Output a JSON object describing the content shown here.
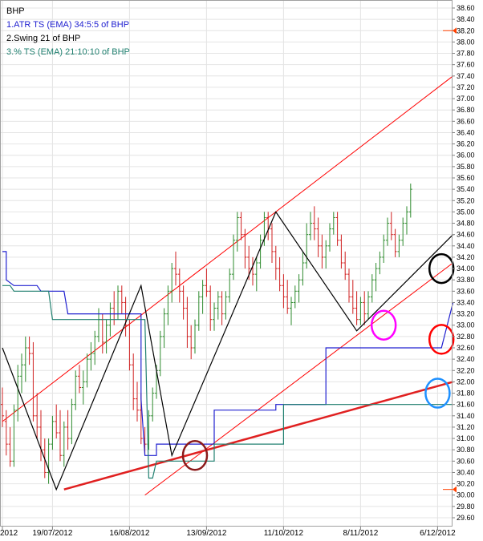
{
  "chart_data": {
    "type": "line",
    "title": "BHP",
    "legend": [
      {
        "label": "1.ATR TS (EMA) 34:5:5 of BHP",
        "color": "#2020d0"
      },
      {
        "label": "2.Swing 21  of BHP",
        "color": "#000000"
      },
      {
        "label": "3.% TS (EMA) 21:10:10 of BHP",
        "color": "#208070"
      }
    ],
    "ylim": [
      29.6,
      38.6
    ],
    "y_ticks": [
      "29.60",
      "29.80",
      "30.00",
      "30.20",
      "30.40",
      "30.60",
      "30.80",
      "31.00",
      "31.20",
      "31.40",
      "31.60",
      "31.80",
      "32.00",
      "32.20",
      "32.40",
      "32.60",
      "32.80",
      "33.00",
      "33.20",
      "33.40",
      "33.60",
      "33.80",
      "34.00",
      "34.20",
      "34.40",
      "34.60",
      "34.80",
      "35.00",
      "35.20",
      "35.40",
      "35.60",
      "35.80",
      "36.00",
      "36.20",
      "36.40",
      "36.60",
      "36.80",
      "37.00",
      "37.20",
      "37.40",
      "37.60",
      "37.80",
      "38.00",
      "38.20",
      "38.40",
      "38.60"
    ],
    "x_ticks": [
      {
        "label": "2012",
        "i": 0
      },
      {
        "label": "19/07/2012",
        "i": 13
      },
      {
        "label": "16/08/2012",
        "i": 33
      },
      {
        "label": "13/09/2012",
        "i": 53
      },
      {
        "label": "11/10/2012",
        "i": 73
      },
      {
        "label": "8/11/2012",
        "i": 93
      },
      {
        "label": "6/12/2012",
        "i": 113
      }
    ],
    "grid": true,
    "price_markers": [
      {
        "price": 38.2,
        "color": "#ff4000"
      },
      {
        "price": 30.1,
        "color": "#ff4000"
      }
    ],
    "candles": [
      [
        31.6,
        31.9,
        31.2,
        31.4
      ],
      [
        31.3,
        31.5,
        30.7,
        30.9
      ],
      [
        30.9,
        31.2,
        30.5,
        30.6
      ],
      [
        30.6,
        31.6,
        30.5,
        31.5
      ],
      [
        31.5,
        32.3,
        31.3,
        32.1
      ],
      [
        32.1,
        32.5,
        31.8,
        32.3
      ],
      [
        32.3,
        32.8,
        32.0,
        32.6
      ],
      [
        32.6,
        32.8,
        32.3,
        32.5
      ],
      [
        32.5,
        32.7,
        31.3,
        31.4
      ],
      [
        31.4,
        31.8,
        31.0,
        31.2
      ],
      [
        31.2,
        31.5,
        30.6,
        30.8
      ],
      [
        30.8,
        31.0,
        30.3,
        30.4
      ],
      [
        30.4,
        31.0,
        30.2,
        30.9
      ],
      [
        30.9,
        31.4,
        30.8,
        31.3
      ],
      [
        31.3,
        31.6,
        31.0,
        31.1
      ],
      [
        31.1,
        31.5,
        30.6,
        30.7
      ],
      [
        30.7,
        31.3,
        30.5,
        31.2
      ],
      [
        31.2,
        31.5,
        30.8,
        31.0
      ],
      [
        31.0,
        31.7,
        30.9,
        31.6
      ],
      [
        31.6,
        32.2,
        31.5,
        32.1
      ],
      [
        32.1,
        32.3,
        31.8,
        31.9
      ],
      [
        31.9,
        32.2,
        31.6,
        32.0
      ],
      [
        32.0,
        32.5,
        31.9,
        32.4
      ],
      [
        32.4,
        32.7,
        32.2,
        32.5
      ],
      [
        32.5,
        32.9,
        32.3,
        32.8
      ],
      [
        32.8,
        33.3,
        32.7,
        33.1
      ],
      [
        33.1,
        33.2,
        32.5,
        32.7
      ],
      [
        32.7,
        33.1,
        32.5,
        33.0
      ],
      [
        33.0,
        33.4,
        32.8,
        33.3
      ],
      [
        33.3,
        33.6,
        33.0,
        33.2
      ],
      [
        33.2,
        33.7,
        33.1,
        33.6
      ],
      [
        33.6,
        33.7,
        33.2,
        33.4
      ],
      [
        33.4,
        33.5,
        32.8,
        33.0
      ],
      [
        33.0,
        33.1,
        32.2,
        32.3
      ],
      [
        32.3,
        32.5,
        31.5,
        31.7
      ],
      [
        31.7,
        32.0,
        31.3,
        31.5
      ],
      [
        31.5,
        31.8,
        30.9,
        31.0
      ],
      [
        31.0,
        31.2,
        30.7,
        30.9
      ],
      [
        30.9,
        31.5,
        30.8,
        31.4
      ],
      [
        31.4,
        31.9,
        31.3,
        31.8
      ],
      [
        31.8,
        32.3,
        31.7,
        32.2
      ],
      [
        32.2,
        32.9,
        32.1,
        32.8
      ],
      [
        32.8,
        33.3,
        32.6,
        33.2
      ],
      [
        33.2,
        33.7,
        33.0,
        33.6
      ],
      [
        33.6,
        34.1,
        33.4,
        34.0
      ],
      [
        34.0,
        34.3,
        33.7,
        33.9
      ],
      [
        33.9,
        34.0,
        33.4,
        33.6
      ],
      [
        33.6,
        33.7,
        33.1,
        33.3
      ],
      [
        33.3,
        33.5,
        32.6,
        32.8
      ],
      [
        32.8,
        33.0,
        32.4,
        32.6
      ],
      [
        32.6,
        33.1,
        32.5,
        33.0
      ],
      [
        33.0,
        33.6,
        32.9,
        33.5
      ],
      [
        33.5,
        33.8,
        33.2,
        33.7
      ],
      [
        33.7,
        34.0,
        33.5,
        33.6
      ],
      [
        33.6,
        33.7,
        32.9,
        33.1
      ],
      [
        33.1,
        33.4,
        32.9,
        33.3
      ],
      [
        33.3,
        33.6,
        33.1,
        33.5
      ],
      [
        33.5,
        33.6,
        33.0,
        33.2
      ],
      [
        33.2,
        33.6,
        33.1,
        33.5
      ],
      [
        33.5,
        34.0,
        33.4,
        33.9
      ],
      [
        33.9,
        34.6,
        33.8,
        34.5
      ],
      [
        34.5,
        35.0,
        34.3,
        34.9
      ],
      [
        34.9,
        35.0,
        34.5,
        34.6
      ],
      [
        34.6,
        34.7,
        34.0,
        34.2
      ],
      [
        34.2,
        34.4,
        33.8,
        34.0
      ],
      [
        34.0,
        34.2,
        33.7,
        33.9
      ],
      [
        33.9,
        34.2,
        33.6,
        34.1
      ],
      [
        34.1,
        34.6,
        34.0,
        34.5
      ],
      [
        34.5,
        35.0,
        34.4,
        34.9
      ],
      [
        34.9,
        35.0,
        34.5,
        34.7
      ],
      [
        34.7,
        34.8,
        34.1,
        34.3
      ],
      [
        34.3,
        34.4,
        33.8,
        34.0
      ],
      [
        34.0,
        34.2,
        33.6,
        33.7
      ],
      [
        33.7,
        33.9,
        33.3,
        33.5
      ],
      [
        33.5,
        33.8,
        33.2,
        33.3
      ],
      [
        33.3,
        33.5,
        33.0,
        33.4
      ],
      [
        33.4,
        33.7,
        33.3,
        33.6
      ],
      [
        33.6,
        33.9,
        33.4,
        33.8
      ],
      [
        33.8,
        34.3,
        33.7,
        34.1
      ],
      [
        34.1,
        34.8,
        34.0,
        34.6
      ],
      [
        34.6,
        35.0,
        34.5,
        34.8
      ],
      [
        34.8,
        35.1,
        34.5,
        34.7
      ],
      [
        34.7,
        34.9,
        34.2,
        34.4
      ],
      [
        34.4,
        34.6,
        34.0,
        34.2
      ],
      [
        34.2,
        34.5,
        34.0,
        34.4
      ],
      [
        34.4,
        34.8,
        34.3,
        34.7
      ],
      [
        34.7,
        35.0,
        34.6,
        34.9
      ],
      [
        34.9,
        35.0,
        34.4,
        34.5
      ],
      [
        34.5,
        34.6,
        34.0,
        34.1
      ],
      [
        34.1,
        34.3,
        33.8,
        33.9
      ],
      [
        33.9,
        34.0,
        33.4,
        33.5
      ],
      [
        33.5,
        33.8,
        33.2,
        33.3
      ],
      [
        33.3,
        33.6,
        33.0,
        33.1
      ],
      [
        33.1,
        33.5,
        33.0,
        33.4
      ],
      [
        33.4,
        33.6,
        33.0,
        33.2
      ],
      [
        33.2,
        33.6,
        33.1,
        33.5
      ],
      [
        33.5,
        33.9,
        33.4,
        33.8
      ],
      [
        33.8,
        34.1,
        33.6,
        34.0
      ],
      [
        34.0,
        34.3,
        33.9,
        34.2
      ],
      [
        34.2,
        34.6,
        34.1,
        34.5
      ],
      [
        34.5,
        34.9,
        34.4,
        34.8
      ],
      [
        34.8,
        35.0,
        34.5,
        34.6
      ],
      [
        34.6,
        34.7,
        34.2,
        34.3
      ],
      [
        34.3,
        34.6,
        34.2,
        34.5
      ],
      [
        34.5,
        34.9,
        34.4,
        34.8
      ],
      [
        34.8,
        35.1,
        34.6,
        35.0
      ],
      [
        35.0,
        35.5,
        34.9,
        35.4
      ]
    ],
    "series": [
      {
        "name": "1.ATR TS (EMA) 34:5:5 of BHP",
        "color": "#2020d0",
        "points": [
          [
            0,
            34.3
          ],
          [
            1,
            34.3
          ],
          [
            1,
            33.8
          ],
          [
            3,
            33.7
          ],
          [
            9,
            33.7
          ],
          [
            10,
            33.6
          ],
          [
            16,
            33.6
          ],
          [
            17,
            33.2
          ],
          [
            36,
            33.2
          ],
          [
            36,
            31.7
          ],
          [
            37,
            30.7
          ],
          [
            40,
            30.7
          ],
          [
            40,
            30.9
          ],
          [
            55,
            30.9
          ],
          [
            55,
            31.5
          ],
          [
            71,
            31.5
          ],
          [
            71,
            31.6
          ],
          [
            84,
            31.6
          ],
          [
            84,
            32.6
          ],
          [
            114,
            32.6
          ],
          [
            117,
            33.4
          ]
        ]
      },
      {
        "name": "2.Swing 21  of BHP",
        "color": "#000000",
        "points": [
          [
            0,
            32.6
          ],
          [
            14,
            30.1
          ],
          [
            36,
            33.7
          ],
          [
            44,
            30.7
          ],
          [
            71,
            35.0
          ],
          [
            92,
            32.9
          ],
          [
            117,
            34.6
          ]
        ]
      },
      {
        "name": "3.% TS (EMA) 21:10:10 of BHP",
        "color": "#208070",
        "points": [
          [
            0,
            33.7
          ],
          [
            2,
            33.7
          ],
          [
            3,
            33.6
          ],
          [
            12,
            33.6
          ],
          [
            13,
            33.1
          ],
          [
            37,
            33.1
          ],
          [
            38,
            30.3
          ],
          [
            39,
            30.3
          ],
          [
            40,
            30.6
          ],
          [
            55,
            30.6
          ],
          [
            55,
            30.9
          ],
          [
            73,
            30.9
          ],
          [
            73,
            31.6
          ],
          [
            117,
            31.6
          ]
        ]
      }
    ],
    "trendlines": [
      {
        "color": "#ff0000",
        "width": 1,
        "from": [
          0,
          31.3
        ],
        "to": [
          117,
          37.4
        ]
      },
      {
        "color": "#ff0000",
        "width": 1,
        "from": [
          37,
          30.0
        ],
        "to": [
          117,
          34.1
        ]
      },
      {
        "color": "#e02020",
        "width": 2.5,
        "from": [
          16,
          30.1
        ],
        "to": [
          117,
          32.0
        ]
      }
    ],
    "circles": [
      {
        "color": "#8b1a1a",
        "center": [
          50,
          30.7
        ]
      },
      {
        "color": "#ff00ff",
        "center": [
          99,
          33.0
        ]
      },
      {
        "color": "#000000",
        "center": [
          114,
          34.0
        ]
      },
      {
        "color": "#ff0000",
        "center": [
          114,
          32.75
        ]
      },
      {
        "color": "#1e90ff",
        "center": [
          113,
          31.8
        ]
      }
    ]
  }
}
